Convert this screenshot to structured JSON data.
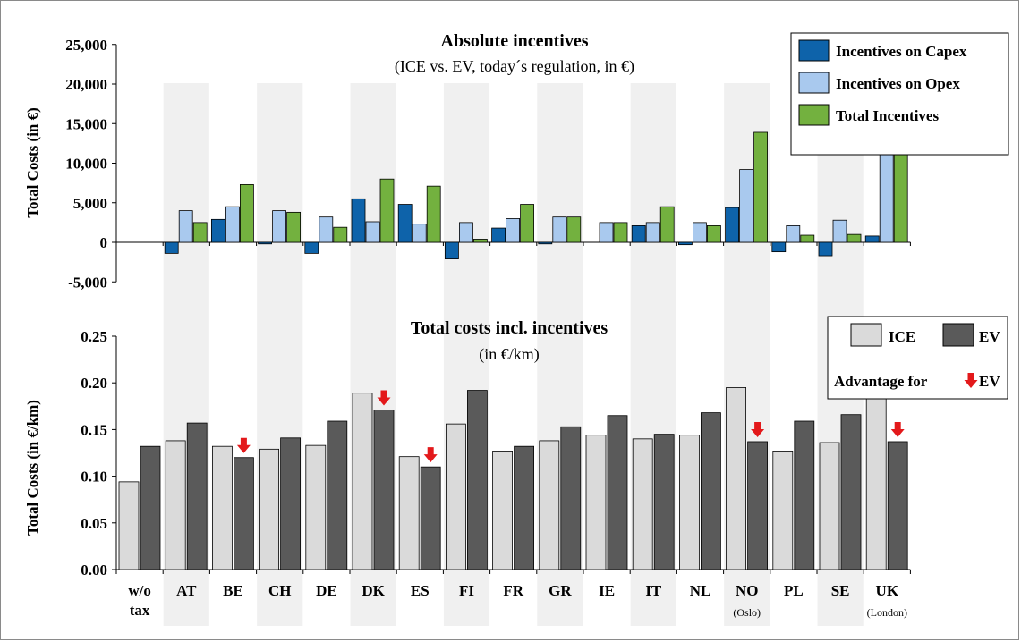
{
  "colors": {
    "capex": "#0e63aa",
    "opex": "#a9c9ee",
    "total": "#73b13f",
    "ice": "#dadada",
    "ev": "#5a5a5a",
    "shade": "#f0f0f0",
    "arrow": "#e3191b"
  },
  "chart_data": [
    {
      "type": "bar",
      "title": "Absolute incentives",
      "subtitle": "(ICE vs. EV, today´s regulation, in €)",
      "ylabel": "Total Costs (in €)",
      "ylim": [
        -5000,
        25000
      ],
      "yticks": [
        "-5,000",
        "0",
        "5,000",
        "10,000",
        "15,000",
        "20,000",
        "25,000"
      ],
      "categories": [
        "AT",
        "BE",
        "CH",
        "DE",
        "DK",
        "ES",
        "FI",
        "FR",
        "GR",
        "IE",
        "IT",
        "NL",
        "NO",
        "PL",
        "SE",
        "UK"
      ],
      "series": [
        {
          "name": "Incentives on Capex",
          "values": [
            -1400,
            2900,
            -200,
            -1400,
            5500,
            4800,
            -2100,
            1800,
            -200,
            0,
            2100,
            -300,
            4400,
            -1200,
            -1700,
            800
          ]
        },
        {
          "name": "Incentives on Opex",
          "values": [
            4000,
            4500,
            4000,
            3200,
            2600,
            2300,
            2500,
            3000,
            3200,
            2500,
            2500,
            2500,
            9200,
            2100,
            2800,
            13000
          ]
        },
        {
          "name": "Total Incentives",
          "values": [
            2500,
            7300,
            3800,
            1900,
            8000,
            7100,
            400,
            4800,
            3200,
            2500,
            4500,
            2100,
            13900,
            900,
            1000,
            13900
          ]
        }
      ],
      "legend_position": "top-right"
    },
    {
      "type": "bar",
      "title": "Total costs incl. incentives",
      "subtitle": "(in €/km)",
      "ylabel": "Total Costs (in €/km)",
      "ylim": [
        0,
        0.25
      ],
      "yticks": [
        "0.00",
        "0.05",
        "0.10",
        "0.15",
        "0.20",
        "0.25"
      ],
      "categories": [
        "w/o tax",
        "AT",
        "BE",
        "CH",
        "DE",
        "DK",
        "ES",
        "FI",
        "FR",
        "GR",
        "IE",
        "IT",
        "NL",
        "NO",
        "PL",
        "SE",
        "UK"
      ],
      "category_sublabels": {
        "NO": "(Oslo)",
        "UK": "(London)"
      },
      "series": [
        {
          "name": "ICE",
          "values": [
            0.094,
            0.138,
            0.132,
            0.129,
            0.133,
            0.189,
            0.121,
            0.156,
            0.127,
            0.138,
            0.144,
            0.14,
            0.144,
            0.195,
            0.127,
            0.136,
            0.195
          ]
        },
        {
          "name": "EV",
          "values": [
            0.132,
            0.157,
            0.12,
            0.141,
            0.159,
            0.171,
            0.11,
            0.192,
            0.132,
            0.153,
            0.165,
            0.145,
            0.168,
            0.137,
            0.159,
            0.166,
            0.137
          ]
        }
      ],
      "ev_advantage": [
        "BE",
        "DK",
        "ES",
        "NO",
        "UK"
      ],
      "legend_position": "top-right",
      "legend_note": "Advantage for",
      "legend_note_suffix": "EV"
    }
  ]
}
